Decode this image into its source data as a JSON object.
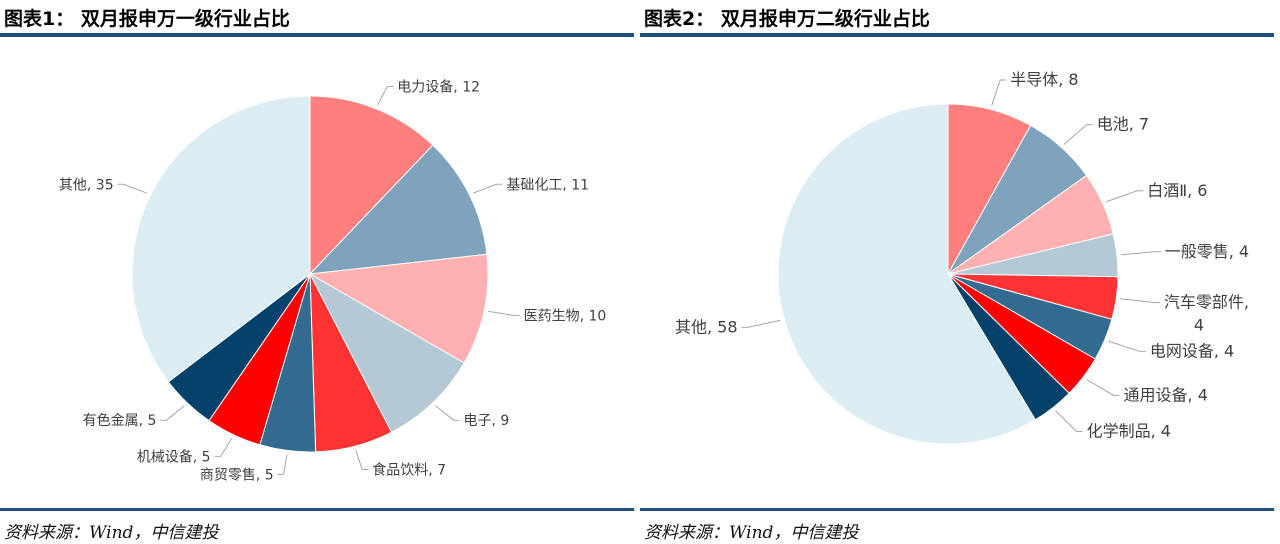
{
  "chart_data": [
    {
      "type": "pie",
      "title": "图表1： 双月报申万一级行业占比",
      "source": "资料来源：Wind，中信建投",
      "categories": [
        "电力设备",
        "基础化工",
        "医药生物",
        "电子",
        "食品饮料",
        "商贸零售",
        "机械设备",
        "有色金属",
        "其他"
      ],
      "values": [
        12,
        11,
        10,
        9,
        7,
        5,
        5,
        5,
        35
      ],
      "colors": [
        "#FF7F7F",
        "#7FA3BD",
        "#FFB0B0",
        "#B4C8D6",
        "#FF3333",
        "#346C91",
        "#FF0000",
        "#04426B",
        "#DBECF3"
      ],
      "labels": [
        "电力设备, 12",
        "基础化工, 11",
        "医药生物, 10",
        "电子, 9",
        "食品饮料, 7",
        "商贸零售, 5",
        "机械设备, 5",
        "有色金属, 5",
        "其他, 35"
      ]
    },
    {
      "type": "pie",
      "title": "图表2： 双月报申万二级行业占比",
      "source": "资料来源：Wind，中信建投",
      "categories": [
        "半导体",
        "电池",
        "白酒Ⅱ",
        "一般零售",
        "汽车零部件",
        "电网设备",
        "通用设备",
        "化学制品",
        "其他"
      ],
      "values": [
        8,
        7,
        6,
        4,
        4,
        4,
        4,
        4,
        58
      ],
      "colors": [
        "#FF7F7F",
        "#7FA3BD",
        "#FFB0B0",
        "#B4C8D6",
        "#FF3333",
        "#346C91",
        "#FF0000",
        "#04426B",
        "#DBECF3"
      ],
      "labels": [
        "半导体, 8",
        "电池, 7",
        "白酒Ⅱ, 6",
        "一般零售, 4",
        "汽车零部件,\n4",
        "电网设备, 4",
        "通用设备, 4",
        "化学制品, 4",
        "其他, 58"
      ]
    }
  ]
}
